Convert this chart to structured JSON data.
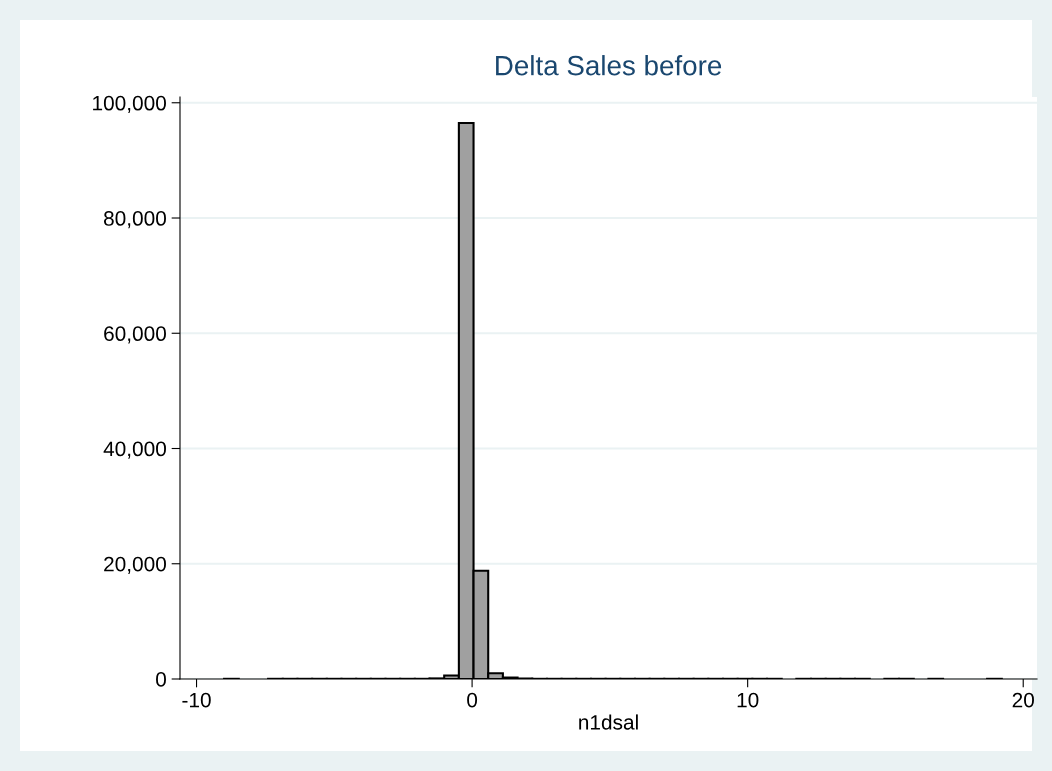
{
  "chart_data": {
    "type": "histogram",
    "title": "Delta Sales before",
    "xlabel": "n1dsal",
    "bins": [
      -9.0,
      -8.4675,
      -7.935,
      -7.4025,
      -6.87,
      -6.3375,
      -5.805,
      -5.2725,
      -4.74,
      -4.2075,
      -3.675,
      -3.1425,
      -2.61,
      -2.0775,
      -1.545,
      -1.0125,
      -0.48,
      0.0525,
      0.585,
      1.1175,
      1.65,
      2.1825,
      2.715,
      3.2475,
      3.78,
      4.3125,
      4.845,
      5.3775,
      5.91,
      6.4425,
      6.975,
      7.5075,
      8.04,
      8.5725,
      9.105,
      9.6375,
      10.17,
      10.7025,
      11.235,
      11.7675,
      12.3,
      12.8325,
      13.365,
      13.8975,
      14.43,
      14.9625,
      15.495,
      16.0275,
      16.56,
      17.0925,
      17.625,
      18.1575,
      18.69,
      19.2225
    ],
    "values": [
      30,
      0,
      0,
      30,
      30,
      30,
      30,
      30,
      30,
      30,
      30,
      30,
      30,
      30,
      100,
      600,
      96500,
      18800,
      1000,
      250,
      80,
      30,
      30,
      30,
      30,
      30,
      30,
      30,
      30,
      30,
      30,
      30,
      30,
      30,
      30,
      30,
      30,
      30,
      0,
      30,
      30,
      30,
      30,
      30,
      0,
      30,
      30,
      0,
      30,
      0,
      0,
      0,
      30
    ],
    "color": "#a0a0a0",
    "xlim": [
      -10.6,
      20.5
    ],
    "xticks": [
      {
        "value": -10,
        "label": "-10"
      },
      0,
      10,
      20
    ],
    "ylim": [
      0,
      101000
    ],
    "yticks": [
      {
        "value": 0,
        "label": "0"
      },
      {
        "value": 20000,
        "label": "20,000"
      },
      {
        "value": 40000,
        "label": "40,000"
      },
      {
        "value": 60000,
        "label": "60,000"
      },
      {
        "value": 80000,
        "label": "80,000"
      },
      {
        "value": 100000,
        "label": "100,000"
      }
    ],
    "grid": "y"
  }
}
